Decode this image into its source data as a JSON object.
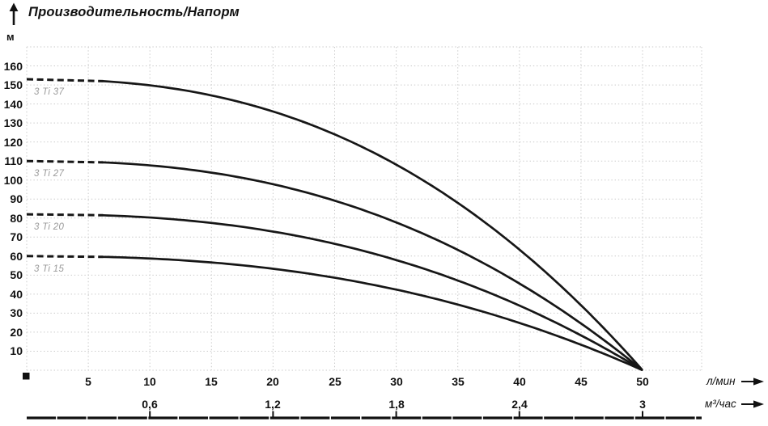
{
  "title": "Производительность/Напорм",
  "y_axis": {
    "unit": "м"
  },
  "x_axis_primary": {
    "unit": "л/мин"
  },
  "x_axis_secondary": {
    "unit": "м³/час"
  },
  "colors": {
    "curve": "#161616",
    "grid": "#c9c9c9",
    "series_label": "#9a9a9a",
    "text": "#111111",
    "background": "#ffffff"
  },
  "chart_data": {
    "type": "line",
    "title": "Производительность/Напорм",
    "ylabel": "м",
    "xlabel_primary": "л/мин",
    "xlabel_secondary": "м³/час",
    "grid": true,
    "xlim": [
      0,
      55
    ],
    "ylim": [
      0,
      170
    ],
    "x_lmin": [
      0,
      5,
      10,
      15,
      20,
      25,
      30,
      35,
      40,
      45,
      50
    ],
    "y_ticks": [
      10,
      20,
      30,
      40,
      50,
      60,
      70,
      80,
      90,
      100,
      110,
      120,
      130,
      140,
      150,
      160
    ],
    "x_ticks_lmin": [
      5,
      10,
      15,
      20,
      25,
      30,
      35,
      40,
      45,
      50
    ],
    "x_ticks_m3h": [
      {
        "label": "0,6",
        "lmin": 10
      },
      {
        "label": "1,2",
        "lmin": 20
      },
      {
        "label": "1,8",
        "lmin": 30
      },
      {
        "label": "2,4",
        "lmin": 40
      },
      {
        "label": "3",
        "lmin": 50
      }
    ],
    "series": [
      {
        "name": "3 Ti 37",
        "values": [
          153,
          152,
          150,
          145,
          136,
          124,
          108,
          88,
          63,
          34,
          0
        ]
      },
      {
        "name": "3 Ti 27",
        "values": [
          110,
          110,
          108,
          104,
          98,
          89,
          78,
          63,
          46,
          25,
          0
        ]
      },
      {
        "name": "3 Ti 20",
        "values": [
          82,
          82,
          80,
          77,
          73,
          66,
          58,
          47,
          34,
          18,
          0
        ]
      },
      {
        "name": "3 Ti 15",
        "values": [
          60,
          60,
          59,
          57,
          53,
          49,
          42,
          35,
          25,
          13,
          0
        ]
      }
    ],
    "dashed_until_lmin": 6.2,
    "curve_exponent": 2.4,
    "max_flow_lmin": 50
  }
}
